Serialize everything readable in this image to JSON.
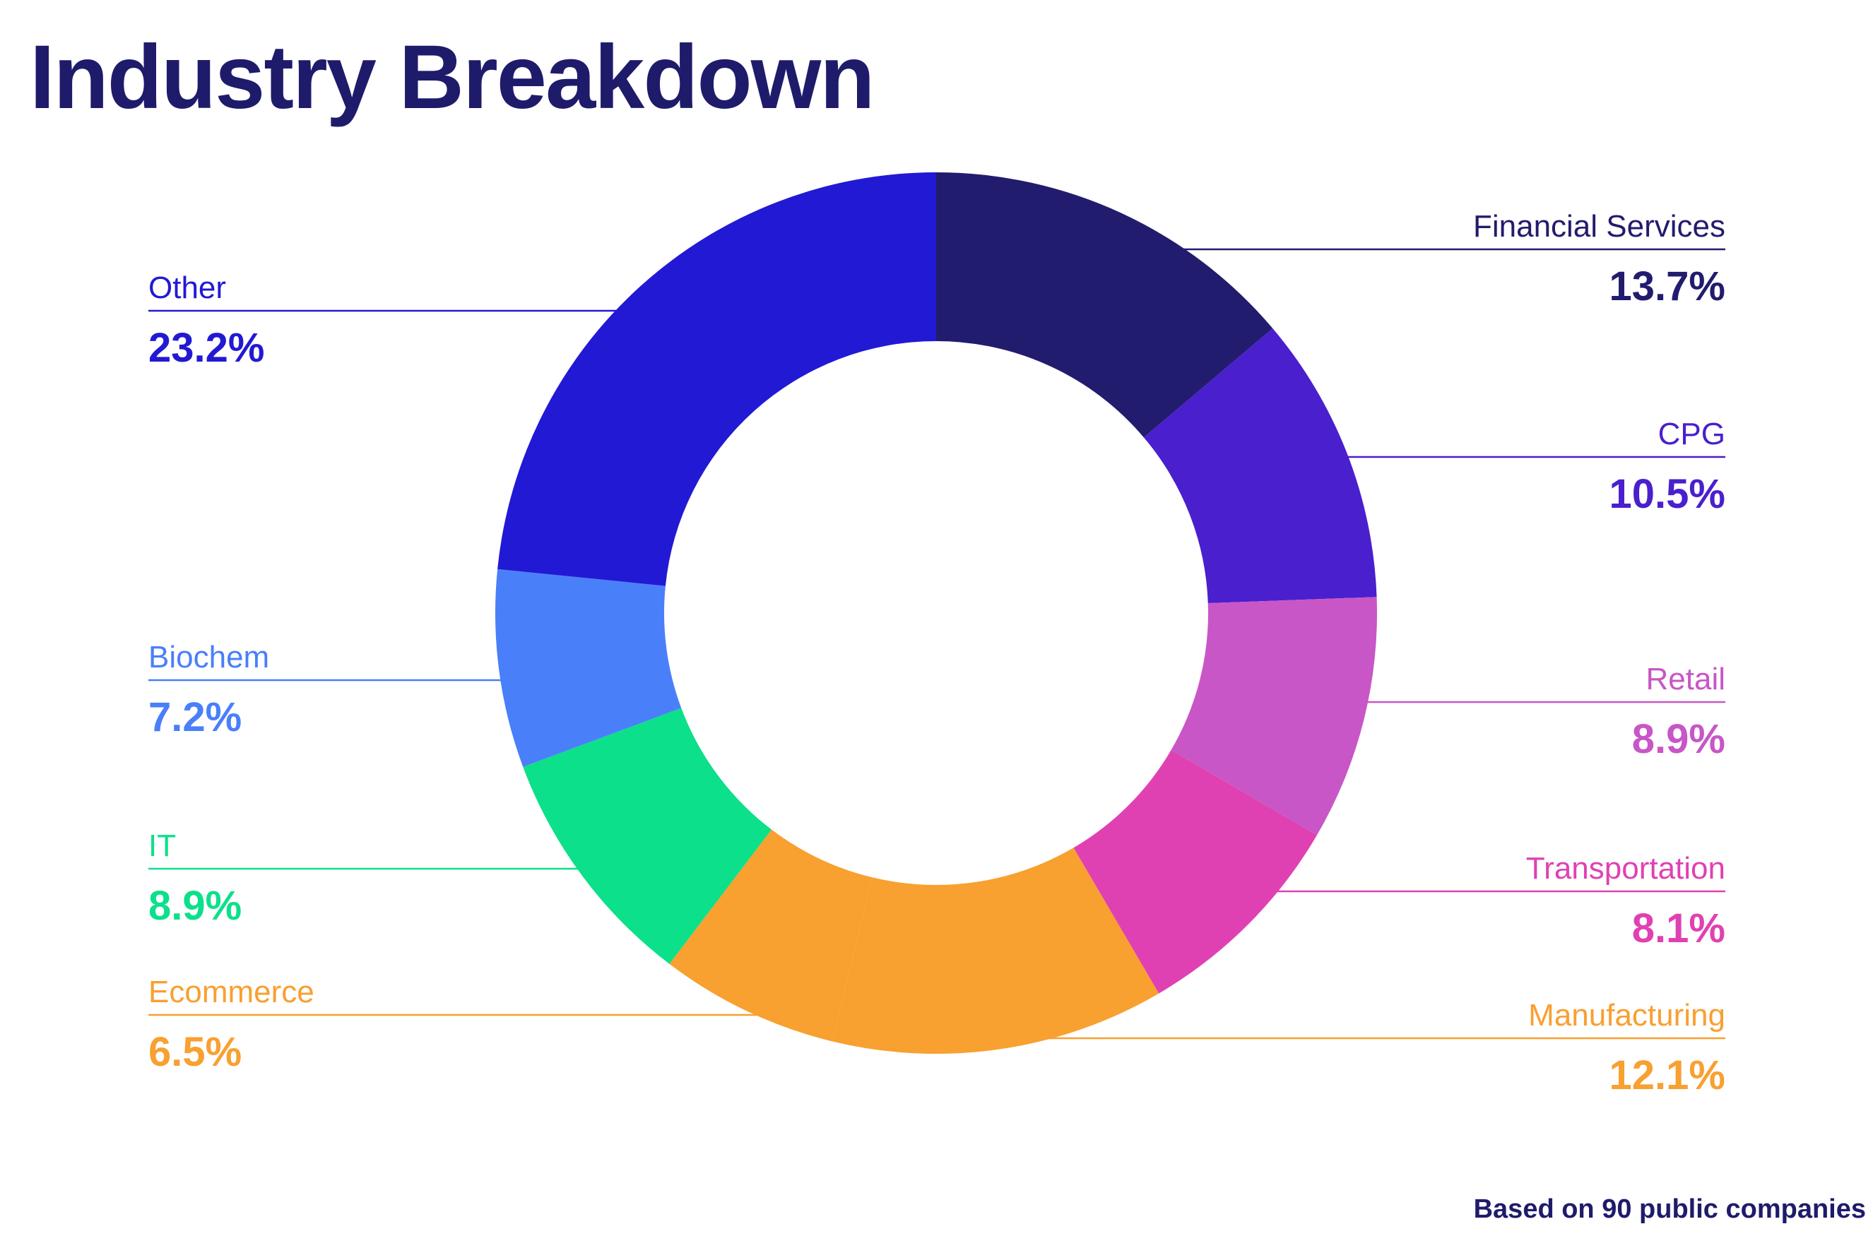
{
  "title": "Industry Breakdown",
  "footnote": "Based on 90 public companies",
  "colors": {
    "title": "#1f1b6b",
    "footnote": "#1f1b6b",
    "background": "#ffffff"
  },
  "chart_data": {
    "type": "pie",
    "donut": true,
    "title": "Industry Breakdown",
    "start": "12 o'clock",
    "direction": "clockwise",
    "slices": [
      {
        "label": "Financial Services",
        "value": 13.7,
        "display": "13.7%",
        "color": "#221c6e",
        "side": "right"
      },
      {
        "label": "CPG",
        "value": 10.5,
        "display": "10.5%",
        "color": "#4a1fce",
        "side": "right"
      },
      {
        "label": "Retail",
        "value": 8.9,
        "display": "8.9%",
        "color": "#c856c6",
        "side": "right"
      },
      {
        "label": "Transportation",
        "value": 8.1,
        "display": "8.1%",
        "color": "#e041b2",
        "side": "right"
      },
      {
        "label": "Manufacturing",
        "value": 12.1,
        "display": "12.1%",
        "color": "#f8a030",
        "side": "right"
      },
      {
        "label": "Ecommerce",
        "value": 6.5,
        "display": "6.5%",
        "color": "#f8a030",
        "side": "left"
      },
      {
        "label": "IT",
        "value": 8.9,
        "display": "8.9%",
        "color": "#0ce08a",
        "side": "left"
      },
      {
        "label": "Biochem",
        "value": 7.2,
        "display": "7.2%",
        "color": "#4a7ffa",
        "side": "left"
      },
      {
        "label": "Other",
        "value": 23.2,
        "display": "23.2%",
        "color": "#2219d4",
        "side": "left"
      }
    ]
  }
}
